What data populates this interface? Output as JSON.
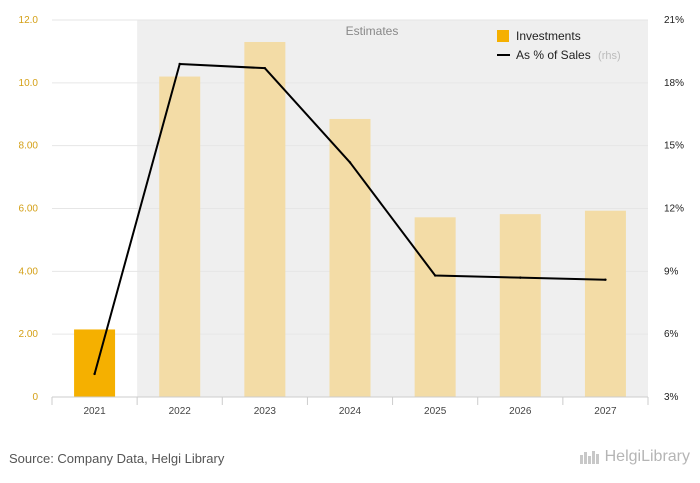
{
  "chart_data": {
    "type": "bar+line",
    "categories": [
      "2021",
      "2022",
      "2023",
      "2024",
      "2025",
      "2026",
      "2027"
    ],
    "series": [
      {
        "name": "Investments",
        "kind": "bar",
        "axis": "left",
        "values": [
          2.15,
          10.2,
          11.3,
          8.85,
          5.72,
          5.82,
          5.93
        ],
        "color_actual": "#f5b000",
        "color_estimate": "#f3dca6"
      },
      {
        "name": "As % of Sales",
        "kind": "line",
        "axis": "right",
        "values": [
          4.1,
          18.9,
          18.7,
          14.2,
          8.8,
          8.7,
          8.6
        ],
        "color": "#000000"
      }
    ],
    "estimate_start_index": 1,
    "estimates_label": "Estimates",
    "y_left": {
      "ylim": [
        0,
        12
      ],
      "ticks": [
        "0",
        "2.00",
        "4.00",
        "6.00",
        "8.00",
        "10.0",
        "12.0"
      ]
    },
    "y_right": {
      "ylim": [
        3,
        21
      ],
      "ticks": [
        "3%",
        "6%",
        "9%",
        "12%",
        "15%",
        "18%",
        "21%"
      ]
    },
    "legend": {
      "placement": "top-right",
      "items": [
        {
          "label": "Investments"
        },
        {
          "label": "As % of Sales",
          "note": "(rhs)"
        }
      ]
    },
    "grid": true
  },
  "footer": {
    "source": "Source: Company Data, Helgi Library",
    "brand": "HelgiLibrary"
  }
}
